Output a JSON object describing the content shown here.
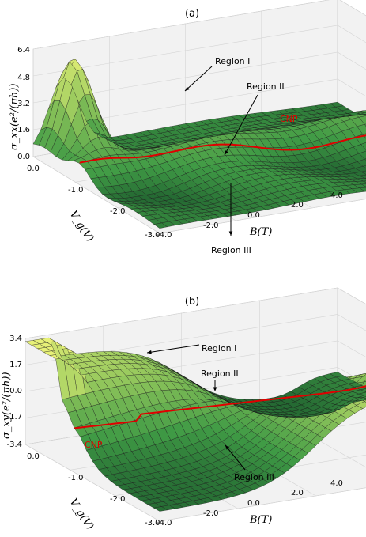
{
  "chart_data": [
    {
      "type": "surface",
      "panel": "(a)",
      "zlabel": "σ_xx(e²/(πh))",
      "xlabel": "B(T)",
      "ylabel": "V_g(V)",
      "x_ticks": [
        "-4.0",
        "-2.0",
        "0.0",
        "2.0",
        "4.0"
      ],
      "y_ticks": [
        "0.0",
        "-1.0",
        "-2.0",
        "-3.0"
      ],
      "z_ticks": [
        "0.0",
        "1.6",
        "3.2",
        "4.8",
        "6.4"
      ],
      "xlim": [
        -4,
        4
      ],
      "ylim": [
        -3,
        0
      ],
      "zlim": [
        0,
        6.4
      ],
      "annotations": [
        "Region I",
        "Region II",
        "Region III",
        "CNP"
      ],
      "colormap": [
        "#1e5d2e",
        "#3f9a45",
        "#8cc35a",
        "#f0f57a"
      ],
      "cnp_color": "#e00000"
    },
    {
      "type": "surface",
      "panel": "(b)",
      "zlabel": "σ_xy(e²/(πh))",
      "xlabel": "B(T)",
      "ylabel": "V_g(V)",
      "x_ticks": [
        "-4.0",
        "-2.0",
        "0.0",
        "2.0",
        "4.0"
      ],
      "y_ticks": [
        "0.0",
        "-1.0",
        "-2.0",
        "-3.0"
      ],
      "z_ticks": [
        "-3.4",
        "-1.7",
        "0.0",
        "1.7",
        "3.4"
      ],
      "xlim": [
        -4,
        4
      ],
      "ylim": [
        -3,
        0
      ],
      "zlim": [
        -3.4,
        3.4
      ],
      "annotations": [
        "Region I",
        "Region II",
        "Region III",
        "CNP"
      ],
      "colormap": [
        "#1e5d2e",
        "#3f9a45",
        "#8cc35a",
        "#f0f57a"
      ],
      "cnp_color": "#e00000"
    }
  ]
}
